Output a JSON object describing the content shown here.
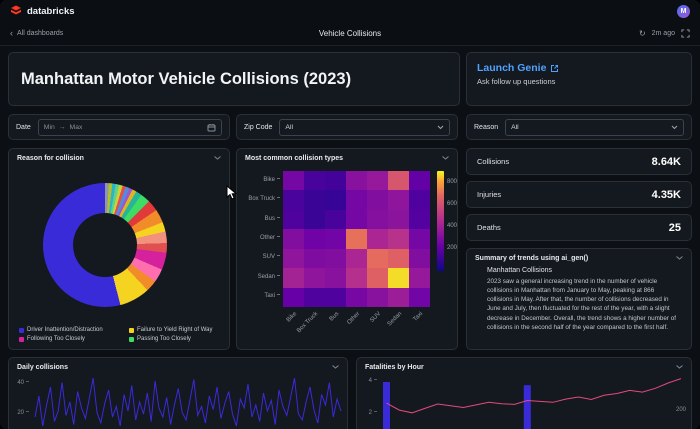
{
  "topbar": {
    "brand": "databricks",
    "avatar": "M"
  },
  "navbar": {
    "back_label": "All dashboards",
    "title": "Vehicle Collisions",
    "updated": "2m ago"
  },
  "icons": {
    "back": "‹",
    "refresh": "↻"
  },
  "header": {
    "title": "Manhattan Motor Vehicle Collisions (2023)"
  },
  "genie": {
    "label": "Launch Genie",
    "subtitle": "Ask follow up questions"
  },
  "filters": {
    "date": {
      "label": "Date",
      "min": "Min",
      "max": "Max",
      "arrow": "→"
    },
    "zip": {
      "label": "Zip Code",
      "value": "All"
    },
    "reason": {
      "label": "Reason",
      "value": "All"
    }
  },
  "kpis": [
    {
      "label": "Collisions",
      "value": "8.64K"
    },
    {
      "label": "Injuries",
      "value": "4.35K"
    },
    {
      "label": "Deaths",
      "value": "25"
    }
  ],
  "summary": {
    "title": "Summary of trends using ai_gen()",
    "heading": "Manhattan Collisions",
    "body": "2023 saw a general increasing trend in the number of vehicle collisions in Manhattan from January to May, peaking at 866 collisions in May. After that, the number of collisions decreased in June and July, then fluctuated for the rest of the year, with a slight decrease in December. Overall, the trend shows a higher number of collisions in the second half of the year compared to the first half."
  },
  "chart_data": {
    "reason_donut": {
      "type": "pie",
      "title": "Reason for collision",
      "segments": [
        {
          "color": "#8e98a5",
          "value": 1.0
        },
        {
          "color": "#b5be2a",
          "value": 0.9
        },
        {
          "color": "#2bb5c9",
          "value": 0.9
        },
        {
          "color": "#5fd38a",
          "value": 0.9
        },
        {
          "color": "#c9d13b",
          "value": 0.9
        },
        {
          "color": "#e05050",
          "value": 0.9
        },
        {
          "color": "#4a90e2",
          "value": 0.9
        },
        {
          "color": "#9b59d0",
          "value": 0.9
        },
        {
          "color": "#e0b420",
          "value": 1.1
        },
        {
          "color": "#27b59a",
          "value": 1.6
        },
        {
          "color": "#3ddc64",
          "value": 2.5
        },
        {
          "color": "#e03a3a",
          "value": 3.0
        },
        {
          "color": "#f28c28",
          "value": 3.5
        },
        {
          "color": "#f5d321",
          "value": 2.5
        },
        {
          "color": "#f2917e",
          "value": 3.0
        },
        {
          "color": "#e05050",
          "value": 2.5
        },
        {
          "color": "#d6219c",
          "value": 4.5
        },
        {
          "color": "#ff6fb0",
          "value": 3.5
        },
        {
          "color": "#f28c28",
          "value": 3.0
        },
        {
          "color": "#f5d321",
          "value": 8.0
        },
        {
          "color": "#3a2bd9",
          "value": 54.0
        }
      ],
      "legend": [
        {
          "label": "Driver Inattention/Distraction",
          "color": "#3a2bd9"
        },
        {
          "label": "Failure to Yield Right of Way",
          "color": "#f5d321"
        },
        {
          "label": "Following Too Closely",
          "color": "#d6219c"
        },
        {
          "label": "Passing Too Closely",
          "color": "#3ddc64"
        }
      ]
    },
    "collision_heatmap": {
      "type": "heatmap",
      "title": "Most common collision types",
      "rows": [
        "Bike",
        "Box Truck",
        "Bus",
        "Other",
        "SUV",
        "Sedan",
        "Taxi"
      ],
      "cols": [
        "Bike",
        "Box Truck",
        "Bus",
        "Other",
        "SUV",
        "Sedan",
        "Taxi"
      ],
      "values": [
        [
          260,
          140,
          130,
          320,
          360,
          620,
          210
        ],
        [
          150,
          110,
          100,
          260,
          300,
          340,
          160
        ],
        [
          160,
          110,
          140,
          260,
          310,
          330,
          170
        ],
        [
          300,
          240,
          250,
          700,
          430,
          480,
          260
        ],
        [
          340,
          290,
          300,
          430,
          690,
          660,
          300
        ],
        [
          410,
          340,
          320,
          470,
          660,
          870,
          360
        ],
        [
          220,
          160,
          160,
          270,
          320,
          380,
          250
        ]
      ],
      "vmin": 0,
      "vmax": 900,
      "colorbar_ticks": [
        800,
        600,
        400,
        200
      ]
    },
    "daily_collisions": {
      "type": "line",
      "title": "Daily collisions",
      "yticks": [
        40,
        20
      ],
      "line_color": "#3a2bd9",
      "values": [
        18,
        32,
        12,
        26,
        38,
        15,
        22,
        41,
        19,
        28,
        13,
        35,
        24,
        17,
        30,
        44,
        21,
        14,
        27,
        36,
        18,
        25,
        12,
        33,
        22,
        39,
        16,
        28,
        20,
        34,
        15,
        42,
        24,
        18,
        31,
        13,
        26,
        37,
        21,
        16,
        29,
        43,
        19,
        25,
        14,
        32,
        23,
        38,
        17,
        27,
        35,
        20,
        12,
        30,
        24,
        40,
        18,
        26,
        15,
        34,
        22,
        29,
        13,
        36,
        25,
        19,
        31,
        44,
        20,
        16,
        28,
        38,
        23,
        14,
        33,
        26,
        41,
        18,
        30,
        22
      ]
    },
    "fatalities_by_hour": {
      "type": "bar+line",
      "title": "Fatalities by Hour",
      "left_yticks": [
        4,
        2
      ],
      "right_yticks": [
        200
      ],
      "bar_color": "#3a2bd9",
      "line_color": "#e34b7c",
      "bars": [
        4,
        0,
        0,
        0,
        0,
        0,
        0,
        0,
        0,
        0,
        0,
        3.8,
        0,
        0,
        0,
        0,
        0,
        0,
        0,
        0,
        0,
        0,
        0,
        0
      ],
      "line": [
        245,
        205,
        190,
        215,
        240,
        230,
        220,
        235,
        250,
        242,
        238,
        260,
        255,
        250,
        268,
        280,
        266,
        290,
        300,
        318,
        308,
        330,
        360,
        385
      ]
    }
  }
}
